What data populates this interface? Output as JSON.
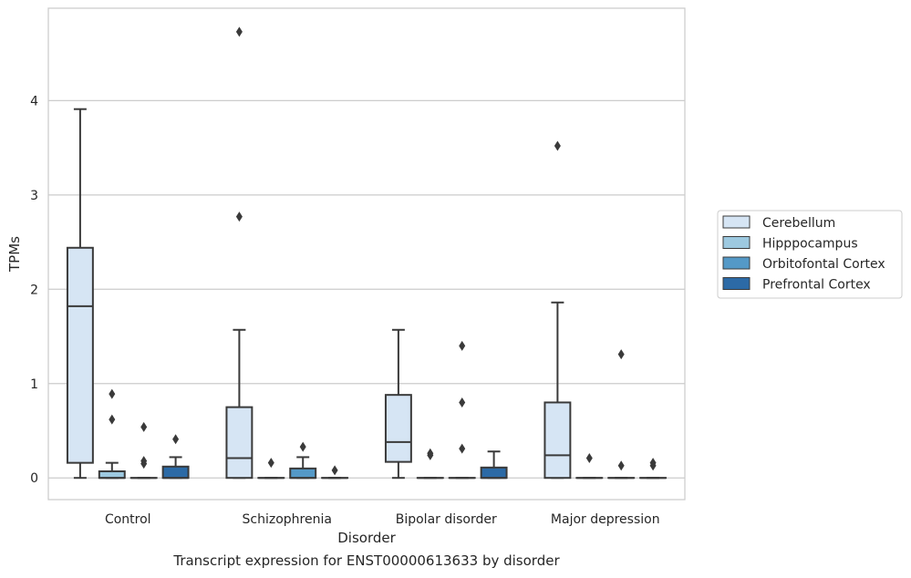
{
  "chart_data": {
    "type": "box",
    "caption": "Transcript expression for ENST00000613633 by disorder",
    "xlabel": "Disorder",
    "ylabel": "TPMs",
    "ylim": [
      -0.23,
      4.98
    ],
    "yticks": [
      0,
      1,
      2,
      3,
      4
    ],
    "grid": "horizontal",
    "legend_position": "right",
    "categories": [
      "Control",
      "Schizophrenia",
      "Bipolar disorder",
      "Major depression"
    ],
    "series": [
      {
        "name": "Cerebellum",
        "color": "#d6e5f4",
        "boxes": [
          {
            "whislo": 0.0,
            "q1": 0.16,
            "med": 1.82,
            "q3": 2.44,
            "whishi": 3.91,
            "fliers": []
          },
          {
            "whislo": 0.0,
            "q1": 0.0,
            "med": 0.21,
            "q3": 0.75,
            "whishi": 1.57,
            "fliers": [
              2.77,
              4.73
            ]
          },
          {
            "whislo": 0.0,
            "q1": 0.17,
            "med": 0.38,
            "q3": 0.88,
            "whishi": 1.57,
            "fliers": []
          },
          {
            "whislo": 0.0,
            "q1": 0.0,
            "med": 0.24,
            "q3": 0.8,
            "whishi": 1.86,
            "fliers": [
              3.52
            ]
          }
        ]
      },
      {
        "name": "Hipppocampus",
        "color": "#9dc9e0",
        "boxes": [
          {
            "whislo": 0.0,
            "q1": 0.0,
            "med": 0.0,
            "q3": 0.07,
            "whishi": 0.16,
            "fliers": [
              0.62,
              0.89
            ]
          },
          {
            "whislo": 0.0,
            "q1": 0.0,
            "med": 0.0,
            "q3": 0.0,
            "whishi": 0.0,
            "fliers": [
              0.16
            ]
          },
          {
            "whislo": 0.0,
            "q1": 0.0,
            "med": 0.0,
            "q3": 0.0,
            "whishi": 0.0,
            "fliers": [
              0.24,
              0.26
            ]
          },
          {
            "whislo": 0.0,
            "q1": 0.0,
            "med": 0.0,
            "q3": 0.0,
            "whishi": 0.0,
            "fliers": [
              0.21
            ]
          }
        ]
      },
      {
        "name": "Orbitofontal Cortex",
        "color": "#5499c7",
        "boxes": [
          {
            "whislo": 0.0,
            "q1": 0.0,
            "med": 0.0,
            "q3": 0.0,
            "whishi": 0.0,
            "fliers": [
              0.15,
              0.18,
              0.54
            ]
          },
          {
            "whislo": 0.0,
            "q1": 0.0,
            "med": 0.0,
            "q3": 0.1,
            "whishi": 0.22,
            "fliers": [
              0.33
            ]
          },
          {
            "whislo": 0.0,
            "q1": 0.0,
            "med": 0.0,
            "q3": 0.0,
            "whishi": 0.0,
            "fliers": [
              0.31,
              0.8,
              1.4
            ]
          },
          {
            "whislo": 0.0,
            "q1": 0.0,
            "med": 0.0,
            "q3": 0.0,
            "whishi": 0.0,
            "fliers": [
              0.13,
              1.31
            ]
          }
        ]
      },
      {
        "name": "Prefrontal Cortex",
        "color": "#2c6aa6",
        "boxes": [
          {
            "whislo": 0.0,
            "q1": 0.0,
            "med": 0.0,
            "q3": 0.12,
            "whishi": 0.22,
            "fliers": [
              0.41
            ]
          },
          {
            "whislo": 0.0,
            "q1": 0.0,
            "med": 0.0,
            "q3": 0.0,
            "whishi": 0.0,
            "fliers": [
              0.08
            ]
          },
          {
            "whislo": 0.0,
            "q1": 0.0,
            "med": 0.0,
            "q3": 0.11,
            "whishi": 0.28,
            "fliers": []
          },
          {
            "whislo": 0.0,
            "q1": 0.0,
            "med": 0.0,
            "q3": 0.0,
            "whishi": 0.0,
            "fliers": [
              0.13,
              0.16
            ]
          }
        ]
      }
    ]
  }
}
